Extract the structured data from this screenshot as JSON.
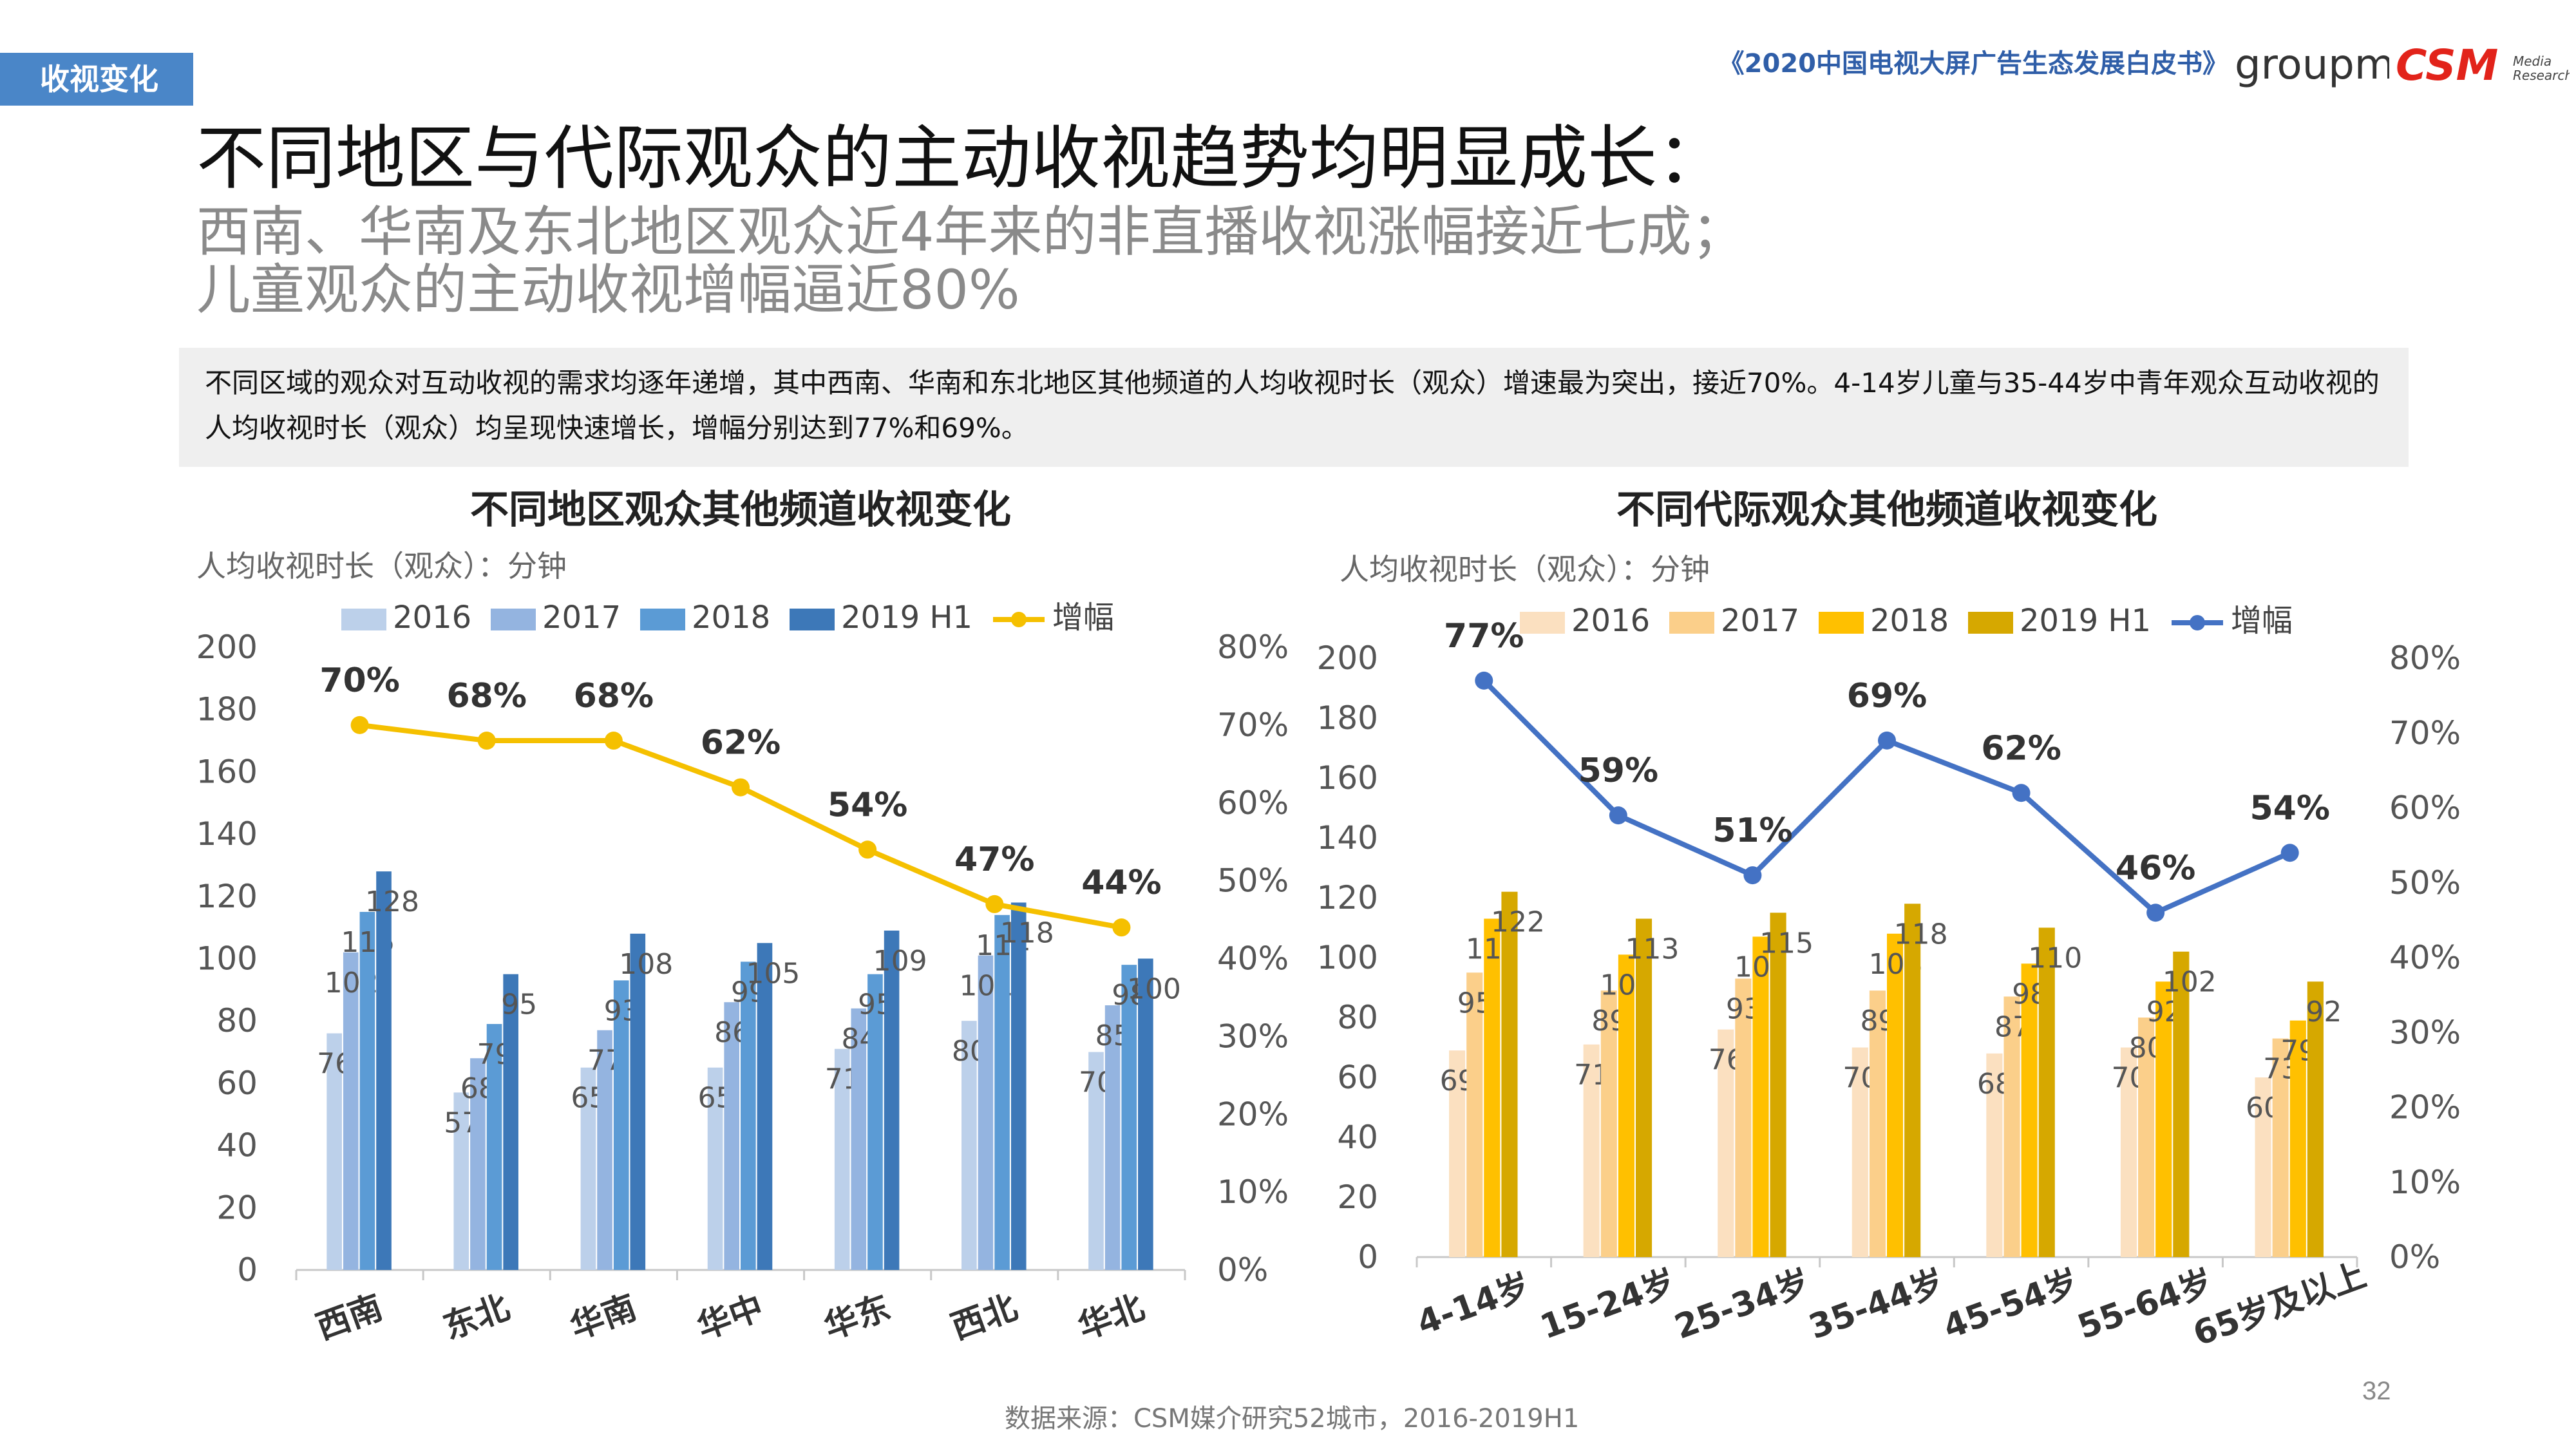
{
  "header": {
    "section_tag": "收视变化",
    "report_title": "《2020中国电视大屏广告生态发展白皮书》",
    "logo_groupm": "groupm",
    "logo_csm": "CSM",
    "logo_csm_sub1": "Media",
    "logo_csm_sub2": "Research"
  },
  "headline": {
    "title": "不同地区与代际观众的主动收视趋势均明显成长：",
    "subtitle_1": "西南、华南及东北地区观众近4年来的非直播收视涨幅接近七成；",
    "subtitle_2": "儿童观众的主动收视增幅逼近80%"
  },
  "description": "不同区域的观众对互动收视的需求均逐年递增，其中西南、华南和东北地区其他频道的人均收视时长（观众）增速最为突出，接近70%。4-14岁儿童与35-44岁中青年观众互动收视的人均收视时长（观众）均呈现快速增长，增幅分别达到77%和69%。",
  "colors": {
    "tag_bg": "#4a86c8",
    "report_title": "#2f5ea8",
    "left_bars": [
      "#bcd0ea",
      "#94b4e0",
      "#5b9bd5",
      "#3d78b8"
    ],
    "left_line": "#f5c000",
    "right_bars": [
      "#fbe0c0",
      "#fbcf8a",
      "#ffc000",
      "#d6a800"
    ],
    "right_line": "#4472c4"
  },
  "chart_data": [
    {
      "type": "bar",
      "title": "不同地区观众其他频道收视变化",
      "unit_label": "人均收视时长（观众）：分钟",
      "categories": [
        "西南",
        "东北",
        "华南",
        "华中",
        "华东",
        "西北",
        "华北"
      ],
      "series": [
        {
          "name": "2016",
          "values": [
            76,
            57,
            65,
            65,
            71,
            80,
            70
          ]
        },
        {
          "name": "2017",
          "values": [
            102,
            68,
            77,
            86,
            84,
            101,
            85
          ]
        },
        {
          "name": "2018",
          "values": [
            115,
            79,
            93,
            99,
            95,
            114,
            98
          ]
        },
        {
          "name": "2019 H1",
          "values": [
            128,
            95,
            108,
            105,
            109,
            118,
            100
          ]
        }
      ],
      "line": {
        "name": "增幅",
        "values": [
          70,
          68,
          68,
          62,
          54,
          47,
          44
        ],
        "labels": [
          "70%",
          "68%",
          "68%",
          "62%",
          "54%",
          "47%",
          "44%"
        ]
      },
      "ylim": [
        0,
        200
      ],
      "yticks": [
        "0",
        "20",
        "40",
        "60",
        "80",
        "100",
        "120",
        "140",
        "160",
        "180",
        "200"
      ],
      "y2lim": [
        0,
        80
      ],
      "y2ticks": [
        "0%",
        "10%",
        "20%",
        "30%",
        "40%",
        "50%",
        "60%",
        "70%",
        "80%"
      ],
      "legend_position": "top"
    },
    {
      "type": "bar",
      "title": "不同代际观众其他频道收视变化",
      "unit_label": "人均收视时长（观众）：分钟",
      "categories": [
        "4-14岁",
        "15-24岁",
        "25-34岁",
        "35-44岁",
        "45-54岁",
        "55-64岁",
        "65岁及以上"
      ],
      "series": [
        {
          "name": "2016",
          "values": [
            69,
            71,
            76,
            70,
            68,
            70,
            60
          ]
        },
        {
          "name": "2017",
          "values": [
            95,
            89,
            93,
            89,
            87,
            80,
            73
          ]
        },
        {
          "name": "2018",
          "values": [
            113,
            101,
            107,
            108,
            98,
            92,
            79
          ]
        },
        {
          "name": "2019 H1",
          "values": [
            122,
            113,
            115,
            118,
            110,
            102,
            92
          ]
        }
      ],
      "line": {
        "name": "增幅",
        "values": [
          77,
          59,
          51,
          69,
          62,
          46,
          54
        ],
        "labels": [
          "77%",
          "59%",
          "51%",
          "69%",
          "62%",
          "46%",
          "54%"
        ]
      },
      "ylim": [
        0,
        200
      ],
      "yticks": [
        "0",
        "20",
        "40",
        "60",
        "80",
        "100",
        "120",
        "140",
        "160",
        "180",
        "200"
      ],
      "y2lim": [
        0,
        80
      ],
      "y2ticks": [
        "0%",
        "10%",
        "20%",
        "30%",
        "40%",
        "50%",
        "60%",
        "70%",
        "80%"
      ],
      "legend_position": "top"
    }
  ],
  "footer": {
    "source": "数据来源：CSM媒介研究52城市，2016-2019H1",
    "page_number": "32"
  }
}
